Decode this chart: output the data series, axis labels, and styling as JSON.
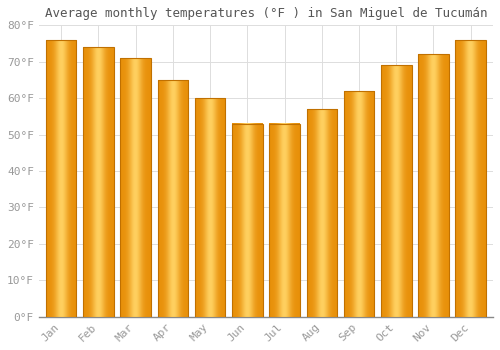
{
  "title": "Average monthly temperatures (°F ) in San Miguel de Tucumán",
  "months": [
    "Jan",
    "Feb",
    "Mar",
    "Apr",
    "May",
    "Jun",
    "Jul",
    "Aug",
    "Sep",
    "Oct",
    "Nov",
    "Dec"
  ],
  "values": [
    76,
    74,
    71,
    65,
    60,
    53,
    53,
    57,
    62,
    69,
    72,
    76
  ],
  "bar_color_main": "#FFA500",
  "bar_color_light": "#FFD060",
  "bar_color_edge": "#E08800",
  "ylim": [
    0,
    80
  ],
  "yticks": [
    0,
    10,
    20,
    30,
    40,
    50,
    60,
    70,
    80
  ],
  "ytick_labels": [
    "0°F",
    "10°F",
    "20°F",
    "30°F",
    "40°F",
    "50°F",
    "60°F",
    "70°F",
    "80°F"
  ],
  "background_color": "#ffffff",
  "grid_color": "#dddddd",
  "title_fontsize": 9,
  "tick_fontsize": 8,
  "tick_color": "#999999",
  "title_color": "#555555"
}
